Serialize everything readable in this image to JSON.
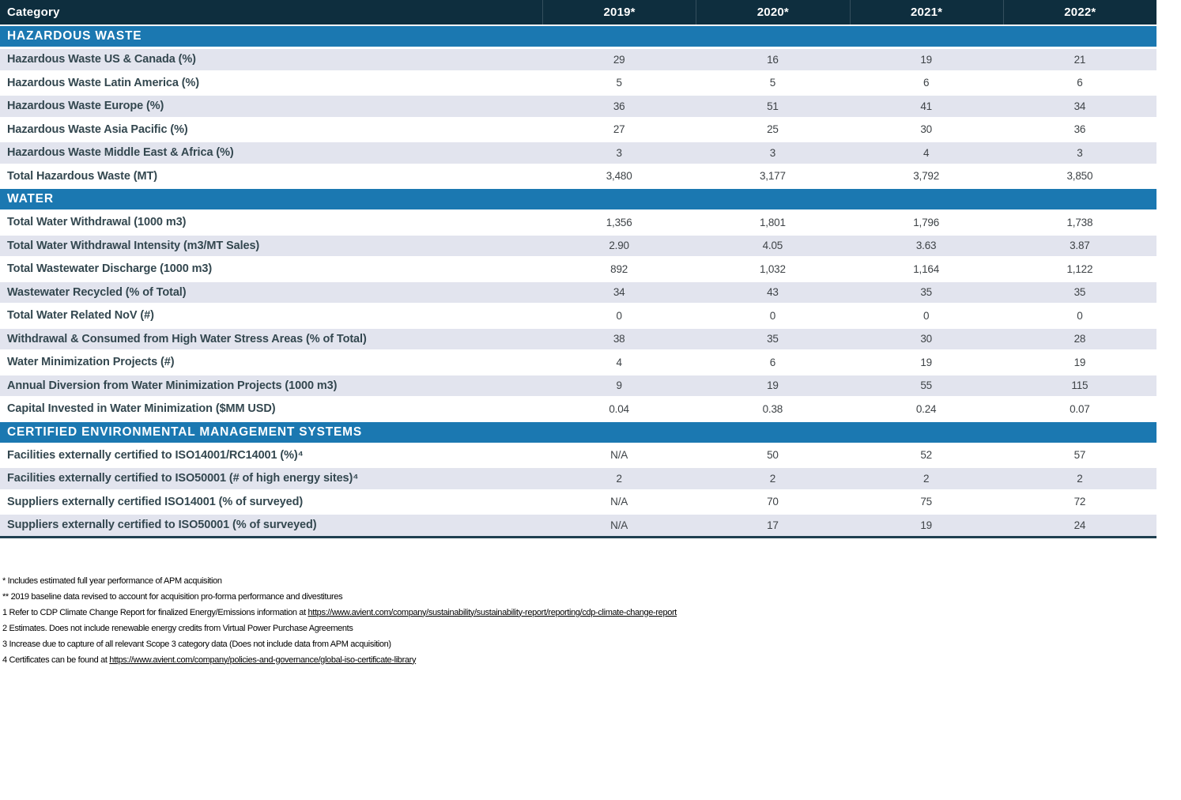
{
  "table": {
    "header": {
      "category": "Category",
      "years": [
        "2019*",
        "2020*",
        "2021*",
        "2022*"
      ]
    },
    "sections": [
      {
        "title": "HAZARDOUS WASTE",
        "rows": [
          {
            "label": "Hazardous Waste US & Canada (%)",
            "values": [
              "29",
              "16",
              "19",
              "21"
            ]
          },
          {
            "label": "Hazardous Waste Latin America (%)",
            "values": [
              "5",
              "5",
              "6",
              "6"
            ]
          },
          {
            "label": "Hazardous Waste Europe (%)",
            "values": [
              "36",
              "51",
              "41",
              "34"
            ]
          },
          {
            "label": "Hazardous Waste Asia Pacific (%)",
            "values": [
              "27",
              "25",
              "30",
              "36"
            ]
          },
          {
            "label": "Hazardous Waste Middle East & Africa (%)",
            "values": [
              "3",
              "3",
              "4",
              "3"
            ]
          },
          {
            "label": "Total Hazardous Waste (MT)",
            "values": [
              "3,480",
              "3,177",
              "3,792",
              "3,850"
            ]
          }
        ]
      },
      {
        "title": "WATER",
        "rows": [
          {
            "label": "Total Water Withdrawal (1000 m3)",
            "values": [
              "1,356",
              "1,801",
              "1,796",
              "1,738"
            ]
          },
          {
            "label": "Total Water Withdrawal Intensity (m3/MT Sales)",
            "values": [
              "2.90",
              "4.05",
              "3.63",
              "3.87"
            ]
          },
          {
            "label": "Total Wastewater Discharge (1000 m3)",
            "values": [
              "892",
              "1,032",
              "1,164",
              "1,122"
            ]
          },
          {
            "label": "Wastewater Recycled (% of Total)",
            "values": [
              "34",
              "43",
              "35",
              "35"
            ]
          },
          {
            "label": "Total Water Related NoV (#)",
            "values": [
              "0",
              "0",
              "0",
              "0"
            ]
          },
          {
            "label": "Withdrawal & Consumed from High Water Stress Areas (% of Total)",
            "values": [
              "38",
              "35",
              "30",
              "28"
            ]
          },
          {
            "label": "Water Minimization Projects (#)",
            "values": [
              "4",
              "6",
              "19",
              "19"
            ]
          },
          {
            "label": "Annual Diversion from Water Minimization Projects (1000 m3)",
            "values": [
              "9",
              "19",
              "55",
              "115"
            ]
          },
          {
            "label": "Capital Invested in Water Minimization ($MM USD)",
            "values": [
              "0.04",
              "0.38",
              "0.24",
              "0.07"
            ]
          }
        ]
      },
      {
        "title": "CERTIFIED ENVIRONMENTAL MANAGEMENT SYSTEMS",
        "rows": [
          {
            "label": "Facilities externally certified to ISO14001/RC14001 (%)⁴",
            "values": [
              "N/A",
              "50",
              "52",
              "57"
            ]
          },
          {
            "label": "Facilities externally certified to ISO50001 (# of high energy sites)⁴",
            "values": [
              "2",
              "2",
              "2",
              "2"
            ]
          },
          {
            "label": "Suppliers externally certified ISO14001 (% of surveyed)",
            "values": [
              "N/A",
              "70",
              "75",
              "72"
            ]
          },
          {
            "label": "Suppliers externally certified to ISO50001 (% of surveyed)",
            "values": [
              "N/A",
              "17",
              "19",
              "24"
            ]
          }
        ]
      }
    ]
  },
  "footnotes": [
    {
      "text": "* Includes estimated full year performance of APM acquisition"
    },
    {
      "text": "** 2019 baseline data revised to account for acquisition pro-forma performance and divestitures"
    },
    {
      "text": "1 Refer to CDP Climate Change Report for finalized Energy/Emissions information at ",
      "link": "https://www.avient.com/company/sustainability/sustainability-report/reporting/cdp-climate-change-report"
    },
    {
      "text": "2 Estimates. Does not include renewable energy credits from Virtual Power Purchase Agreements"
    },
    {
      "text": "3 Increase due to capture of all relevant Scope 3 category data (Does not include data from APM acquisition)"
    },
    {
      "text": "4 Certificates can be found at ",
      "link": "https://www.avient.com/company/policies-and-governance/global-iso-certificate-library"
    }
  ],
  "colors": {
    "header_bar": "#0e2e3e",
    "section_bar": "#1b78b1",
    "striped_row": "#e2e4ee",
    "label_text": "#33474f",
    "value_text": "#3e4347",
    "table_bottom_border": "#1e3f50"
  }
}
